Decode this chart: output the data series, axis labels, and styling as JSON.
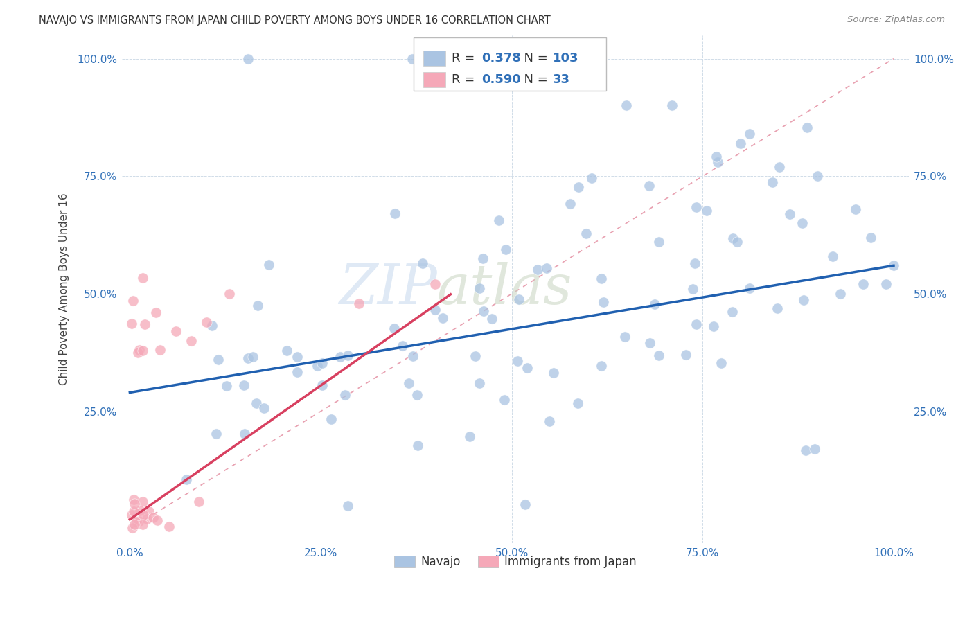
{
  "title": "NAVAJO VS IMMIGRANTS FROM JAPAN CHILD POVERTY AMONG BOYS UNDER 16 CORRELATION CHART",
  "source": "Source: ZipAtlas.com",
  "ylabel": "Child Poverty Among Boys Under 16",
  "watermark_zip": "ZIP",
  "watermark_atlas": "atlas",
  "navajo_R": 0.378,
  "navajo_N": 103,
  "japan_R": 0.59,
  "japan_N": 33,
  "navajo_color": "#aac4e2",
  "japan_color": "#f5a8b8",
  "navajo_line_color": "#2060b0",
  "japan_line_color": "#d84060",
  "diagonal_color": "#e8a0b0",
  "tick_color": "#3070b8",
  "title_color": "#333333",
  "source_color": "#888888",
  "legend_label_navajo": "Navajo",
  "legend_label_japan": "Immigrants from Japan"
}
